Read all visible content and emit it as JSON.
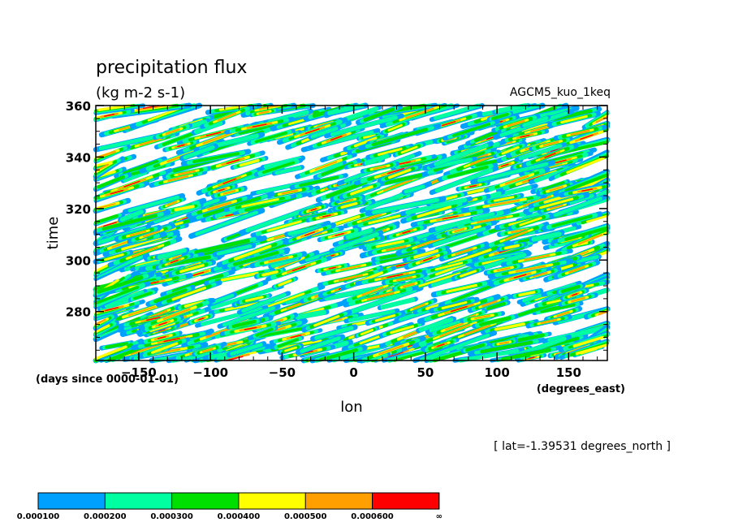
{
  "chart_data": {
    "type": "heatmap",
    "title": "precipitation flux",
    "units": "(kg m-2 s-1)",
    "model_label": "AGCM5_kuo_1keq",
    "xlabel": "lon",
    "x_units": "(degrees_east)",
    "ylabel": "time",
    "y_units": "(days since 0000-01-01)",
    "annotation": "[ lat=-1.39531 degrees_north ]",
    "xlim": [
      -180,
      177
    ],
    "ylim": [
      261,
      360
    ],
    "x_ticks": [
      -150,
      -100,
      -50,
      0,
      50,
      100,
      150
    ],
    "x_tick_labels": [
      "−150",
      "−100",
      "−50",
      "0",
      "50",
      "100",
      "150"
    ],
    "y_ticks": [
      280,
      300,
      320,
      340,
      360
    ],
    "y_tick_labels": [
      "280",
      "300",
      "320",
      "340",
      "360"
    ],
    "levels": [
      0.0001,
      0.0002,
      0.0003,
      0.0004,
      0.0005,
      0.0006
    ],
    "level_labels": [
      "0.000100",
      "0.000200",
      "0.000300",
      "0.000400",
      "0.000500",
      "0.000600",
      "∞"
    ],
    "colors": [
      "#00a0ff",
      "#00ffa0",
      "#00e000",
      "#ffff00",
      "#ffa000",
      "#ff0000"
    ],
    "grid": false,
    "legend": "horizontal colorbar at bottom"
  }
}
